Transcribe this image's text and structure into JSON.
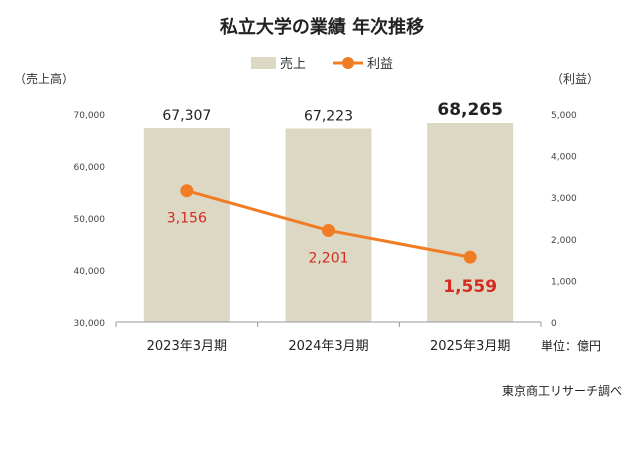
{
  "chart_data": {
    "type": "bar+line",
    "title": "私立大学の業績 年次推移",
    "categories": [
      "2023年3月期",
      "2024年3月期",
      "2025年3月期"
    ],
    "series": [
      {
        "name": "売上",
        "type": "bar",
        "axis": "left",
        "values": [
          67307,
          67223,
          68265
        ],
        "labels": [
          "67,307",
          "67,223",
          "68,265"
        ],
        "color": "#ddd8c4"
      },
      {
        "name": "利益",
        "type": "line",
        "axis": "right",
        "values": [
          3156,
          2201,
          1559
        ],
        "labels": [
          "3,156",
          "2,201",
          "1,559"
        ],
        "color": "#f07c24",
        "label_color": "#d42b1e"
      }
    ],
    "y_left": {
      "label": "（売上高）",
      "ylim": [
        30000,
        70000
      ],
      "ticks": [
        "30,000",
        "40,000",
        "50,000",
        "60,000",
        "70,000"
      ]
    },
    "y_right": {
      "label": "（利益）",
      "ylim": [
        0,
        5000
      ],
      "ticks": [
        "0",
        "1,000",
        "2,000",
        "3,000",
        "4,000",
        "5,000"
      ]
    },
    "legend_position": "top-center",
    "grid": false
  },
  "unit_note": "単位：億円",
  "source_note": "東京商工リサーチ調べ"
}
